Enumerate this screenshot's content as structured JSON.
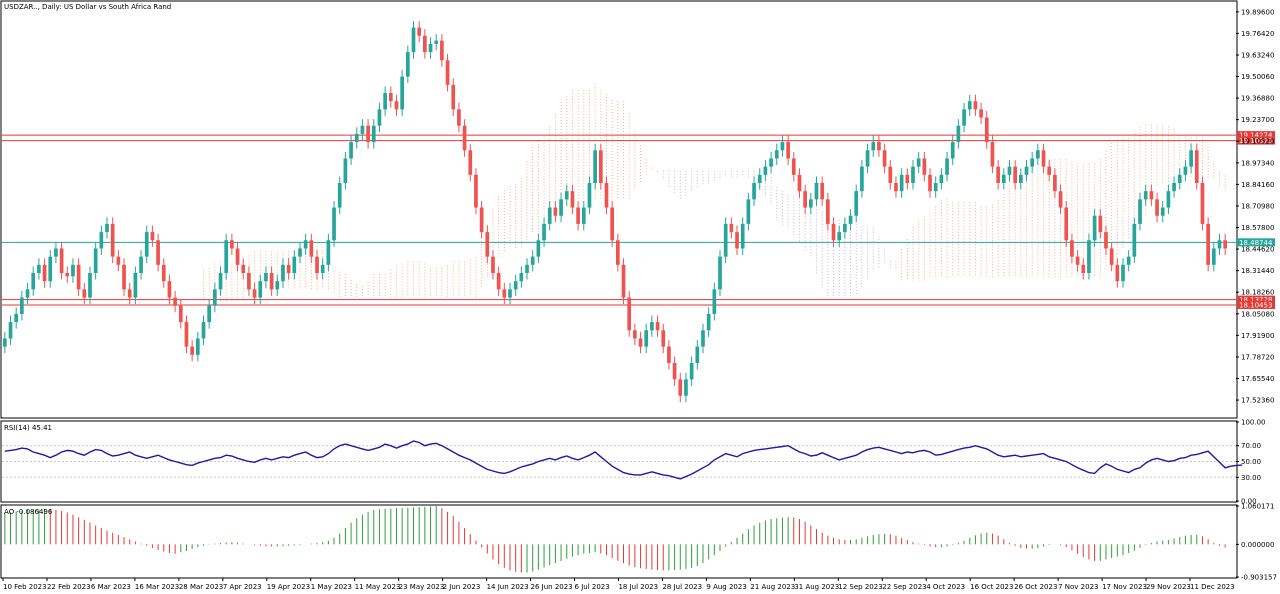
{
  "colors": {
    "bull": "#26a69a",
    "bear": "#ef5350",
    "level_line": "#e53935",
    "price_line": "#26a69a",
    "cloud_orange": "#f0a070",
    "cloud_purple": "#b8a0d8",
    "rsi_line": "#1a1aa8",
    "ao_up": "#2e9e3a",
    "ao_down": "#e53935",
    "grid": "#c8c8c8",
    "frame": "#000000"
  },
  "chart_data": [
    {
      "type": "candlestick",
      "title": "USDZAR.., Daily:  US Dollar vs South Africa Rand",
      "ylim": [
        17.42,
        19.95
      ],
      "y_ticks": [
        "19.89600",
        "19.76420",
        "19.63240",
        "19.50060",
        "19.36880",
        "19.23700",
        "19.10520",
        "18.97340",
        "18.84160",
        "18.70980",
        "18.57800",
        "18.44620",
        "18.31440",
        "18.18260",
        "18.05080",
        "17.91900",
        "17.78720",
        "17.65540",
        "17.52360"
      ],
      "x_ticks": [
        "10 Feb 2023",
        "22 Feb 2023",
        "6 Mar 2023",
        "16 Mar 2023",
        "28 Mar 2023",
        "7 Apr 2023",
        "19 Apr 2023",
        "1 May 2023",
        "11 May 2023",
        "23 May 2023",
        "2 Jun 2023",
        "14 Jun 2023",
        "26 Jun 2023",
        "6 Jul 2023",
        "18 Jul 2023",
        "28 Jul 2023",
        "9 Aug 2023",
        "21 Aug 2023",
        "31 Aug 2023",
        "12 Sep 2023",
        "22 Sep 2023",
        "4 Oct 2023",
        "16 Oct 2023",
        "26 Oct 2023",
        "7 Nov 2023",
        "17 Nov 2023",
        "29 Nov 2023",
        "11 Dec 2023"
      ],
      "levels": [
        {
          "value": 19.14274,
          "label": "19.14274",
          "style": "red"
        },
        {
          "value": 19.10923,
          "label": "19.10923",
          "style": "red"
        },
        {
          "value": 18.48744,
          "label": "18.48744",
          "style": "current"
        },
        {
          "value": 18.13728,
          "label": "18.13728",
          "style": "red"
        },
        {
          "value": 18.10453,
          "label": "18.10453",
          "style": "red"
        }
      ],
      "closes": [
        17.9,
        18.0,
        18.05,
        18.15,
        18.2,
        18.3,
        18.35,
        18.25,
        18.4,
        18.45,
        18.3,
        18.28,
        18.35,
        18.2,
        18.15,
        18.3,
        18.45,
        18.55,
        18.6,
        18.4,
        18.35,
        18.2,
        18.15,
        18.3,
        18.4,
        18.55,
        18.5,
        18.35,
        18.25,
        18.15,
        18.1,
        18.0,
        17.85,
        17.8,
        17.9,
        18.0,
        18.1,
        18.2,
        18.3,
        18.5,
        18.45,
        18.35,
        18.3,
        18.2,
        18.15,
        18.25,
        18.3,
        18.2,
        18.25,
        18.35,
        18.3,
        18.4,
        18.45,
        18.5,
        18.4,
        18.3,
        18.35,
        18.5,
        18.7,
        18.85,
        19.0,
        19.1,
        19.15,
        19.2,
        19.1,
        19.2,
        19.3,
        19.4,
        19.35,
        19.3,
        19.5,
        19.65,
        19.8,
        19.75,
        19.65,
        19.7,
        19.72,
        19.6,
        19.45,
        19.3,
        19.2,
        19.05,
        18.9,
        18.7,
        18.55,
        18.4,
        18.3,
        18.2,
        18.15,
        18.2,
        18.25,
        18.3,
        18.35,
        18.4,
        18.5,
        18.6,
        18.7,
        18.65,
        18.75,
        18.8,
        18.7,
        18.6,
        18.7,
        18.85,
        19.05,
        18.85,
        18.7,
        18.5,
        18.35,
        18.15,
        17.95,
        17.9,
        17.85,
        17.95,
        18.0,
        17.95,
        17.85,
        17.75,
        17.65,
        17.55,
        17.65,
        17.75,
        17.85,
        17.95,
        18.05,
        18.2,
        18.4,
        18.6,
        18.55,
        18.45,
        18.6,
        18.75,
        18.85,
        18.9,
        18.95,
        19.0,
        19.05,
        19.1,
        19.0,
        18.9,
        18.8,
        18.7,
        18.75,
        18.85,
        18.75,
        18.6,
        18.5,
        18.55,
        18.6,
        18.65,
        18.8,
        18.95,
        19.05,
        19.1,
        19.05,
        18.95,
        18.85,
        18.8,
        18.9,
        18.85,
        18.95,
        19.0,
        18.9,
        18.8,
        18.85,
        18.9,
        19.0,
        19.1,
        19.2,
        19.3,
        19.35,
        19.3,
        19.25,
        19.1,
        18.95,
        18.85,
        18.9,
        18.95,
        18.85,
        18.9,
        18.95,
        19.0,
        19.05,
        18.95,
        18.9,
        18.8,
        18.7,
        18.5,
        18.4,
        18.35,
        18.3,
        18.5,
        18.65,
        18.55,
        18.45,
        18.35,
        18.25,
        18.35,
        18.4,
        18.6,
        18.75,
        18.8,
        18.75,
        18.65,
        18.7,
        18.8,
        18.85,
        18.9,
        18.95,
        19.05,
        18.85,
        18.6,
        18.35,
        18.45,
        18.5,
        18.45
      ]
    },
    {
      "type": "line",
      "title": "RSI(14) 45.41",
      "ylim": [
        0,
        100
      ],
      "y_ticks": [
        "100.00",
        "70.00",
        "50.00",
        "30.00",
        "0.00"
      ],
      "values": [
        63,
        64,
        65,
        67,
        66,
        62,
        60,
        58,
        55,
        58,
        62,
        64,
        63,
        60,
        58,
        62,
        65,
        64,
        60,
        57,
        58,
        60,
        62,
        58,
        56,
        54,
        56,
        58,
        55,
        52,
        50,
        48,
        46,
        45,
        48,
        50,
        52,
        54,
        55,
        58,
        57,
        54,
        52,
        50,
        49,
        52,
        54,
        52,
        54,
        56,
        55,
        58,
        60,
        62,
        58,
        55,
        56,
        60,
        66,
        70,
        72,
        70,
        68,
        66,
        64,
        66,
        68,
        72,
        70,
        67,
        70,
        72,
        76,
        74,
        70,
        72,
        73,
        70,
        66,
        62,
        58,
        55,
        52,
        48,
        44,
        40,
        38,
        36,
        35,
        37,
        40,
        43,
        45,
        47,
        50,
        52,
        54,
        52,
        55,
        57,
        54,
        52,
        55,
        58,
        62,
        56,
        50,
        44,
        40,
        36,
        34,
        33,
        33,
        35,
        37,
        35,
        33,
        32,
        30,
        28,
        31,
        34,
        38,
        42,
        46,
        52,
        56,
        60,
        58,
        56,
        60,
        62,
        64,
        65,
        66,
        67,
        68,
        69,
        70,
        66,
        62,
        60,
        57,
        58,
        61,
        58,
        55,
        52,
        54,
        56,
        58,
        62,
        65,
        67,
        68,
        66,
        64,
        62,
        60,
        62,
        61,
        63,
        64,
        62,
        58,
        59,
        61,
        63,
        65,
        67,
        68,
        70,
        68,
        66,
        62,
        58,
        56,
        57,
        58,
        56,
        57,
        58,
        59,
        60,
        56,
        54,
        52,
        50,
        46,
        42,
        39,
        36,
        35,
        42,
        47,
        44,
        40,
        38,
        36,
        40,
        42,
        48,
        52,
        54,
        52,
        50,
        51,
        54,
        55,
        58,
        59,
        61,
        63,
        56,
        49,
        42,
        44,
        45,
        45.41
      ]
    },
    {
      "type": "bar",
      "title": "AO -0.086496",
      "ylim": [
        -0.903157,
        1.060171
      ],
      "y_ticks": [
        "1.060171",
        "0.000000",
        "-0.903157"
      ],
      "values": [
        0.85,
        0.88,
        0.9,
        0.93,
        0.95,
        0.96,
        0.97,
        0.98,
        0.97,
        0.95,
        0.92,
        0.88,
        0.82,
        0.75,
        0.68,
        0.6,
        0.52,
        0.45,
        0.38,
        0.32,
        0.26,
        0.2,
        0.14,
        0.08,
        0.02,
        -0.04,
        -0.1,
        -0.16,
        -0.2,
        -0.24,
        -0.26,
        -0.22,
        -0.18,
        -0.13,
        -0.08,
        -0.04,
        -0.01,
        0.02,
        0.04,
        0.05,
        0.06,
        0.04,
        0.02,
        0.0,
        -0.02,
        -0.04,
        -0.05,
        -0.06,
        -0.06,
        -0.05,
        -0.04,
        -0.03,
        -0.02,
        0.0,
        0.02,
        0.04,
        0.06,
        0.1,
        0.18,
        0.3,
        0.45,
        0.6,
        0.72,
        0.82,
        0.9,
        0.95,
        0.97,
        0.98,
        0.99,
        1.0,
        1.0,
        1.01,
        1.02,
        1.03,
        1.04,
        1.05,
        1.06,
        1.0,
        0.9,
        0.78,
        0.62,
        0.45,
        0.28,
        0.1,
        -0.08,
        -0.25,
        -0.42,
        -0.55,
        -0.65,
        -0.72,
        -0.76,
        -0.78,
        -0.78,
        -0.75,
        -0.7,
        -0.64,
        -0.58,
        -0.52,
        -0.46,
        -0.4,
        -0.34,
        -0.3,
        -0.26,
        -0.24,
        -0.22,
        -0.25,
        -0.3,
        -0.38,
        -0.45,
        -0.52,
        -0.58,
        -0.63,
        -0.66,
        -0.68,
        -0.7,
        -0.71,
        -0.72,
        -0.72,
        -0.71,
        -0.7,
        -0.68,
        -0.65,
        -0.6,
        -0.52,
        -0.42,
        -0.3,
        -0.18,
        -0.06,
        0.06,
        0.18,
        0.3,
        0.42,
        0.52,
        0.6,
        0.66,
        0.7,
        0.72,
        0.74,
        0.75,
        0.74,
        0.7,
        0.62,
        0.52,
        0.42,
        0.32,
        0.24,
        0.18,
        0.14,
        0.12,
        0.12,
        0.14,
        0.18,
        0.22,
        0.26,
        0.28,
        0.29,
        0.28,
        0.24,
        0.18,
        0.12,
        0.06,
        0.02,
        -0.02,
        -0.06,
        -0.08,
        -0.08,
        -0.06,
        -0.02,
        0.04,
        0.1,
        0.18,
        0.25,
        0.3,
        0.32,
        0.3,
        0.24,
        0.14,
        0.04,
        -0.04,
        -0.1,
        -0.12,
        -0.12,
        -0.1,
        -0.06,
        -0.02,
        0.0,
        -0.02,
        -0.08,
        -0.16,
        -0.26,
        -0.35,
        -0.42,
        -0.46,
        -0.46,
        -0.42,
        -0.38,
        -0.34,
        -0.3,
        -0.24,
        -0.18,
        -0.1,
        -0.02,
        0.04,
        0.08,
        0.1,
        0.12,
        0.16,
        0.2,
        0.24,
        0.26,
        0.26,
        0.22,
        0.14,
        0.04,
        -0.04,
        -0.086
      ]
    }
  ]
}
